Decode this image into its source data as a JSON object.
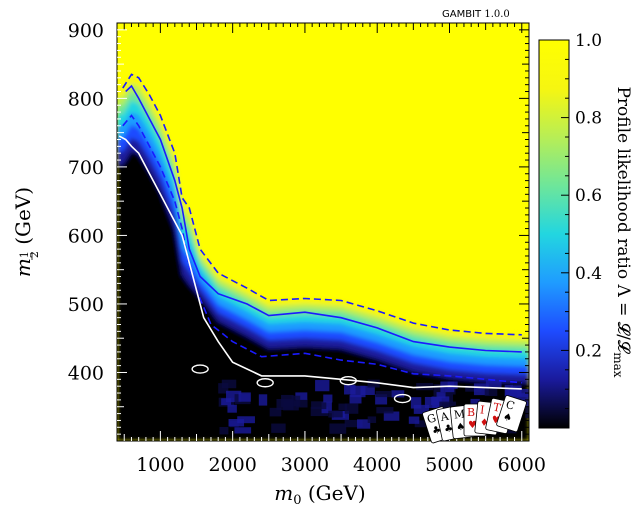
{
  "chart_data": {
    "type": "heatmap",
    "x_axis": {
      "label_main": "m",
      "label_sub": "0",
      "label_unit": " (GeV)",
      "range": [
        400,
        6100
      ],
      "ticks": [
        1000,
        2000,
        3000,
        4000,
        5000,
        6000
      ],
      "tick_labels": [
        "1000",
        "2000",
        "3000",
        "4000",
        "5000",
        "6000"
      ]
    },
    "y_axis": {
      "label_main": "m",
      "label_sub_num": "1",
      "label_sub_den": "2",
      "label_unit": " (GeV)",
      "range": [
        300,
        910
      ],
      "ticks": [
        400,
        500,
        600,
        700,
        800,
        900
      ],
      "tick_labels": [
        "400",
        "500",
        "600",
        "700",
        "800",
        "900"
      ]
    },
    "colorbar": {
      "label": "Profile likelihood ratio Λ = 𝓛/𝓛",
      "label_sub": "max",
      "range": [
        0,
        1
      ],
      "ticks": [
        0.2,
        0.4,
        0.6,
        0.8,
        1.0
      ],
      "tick_labels": [
        "0.2",
        "0.4",
        "0.6",
        "0.8",
        "1.0"
      ],
      "colors": [
        "#000000",
        "#1a1a9c",
        "#1e4cff",
        "#1f9cff",
        "#22d6e0",
        "#6ee69a",
        "#b8ee55",
        "#f6f611",
        "#ffff00"
      ]
    },
    "boundary_68": [
      [
        520,
        810
      ],
      [
        600,
        818
      ],
      [
        700,
        800
      ],
      [
        850,
        770
      ],
      [
        1000,
        740
      ],
      [
        1200,
        680
      ],
      [
        1300,
        640
      ],
      [
        1400,
        580
      ],
      [
        1550,
        540
      ],
      [
        1800,
        515
      ],
      [
        2200,
        500
      ],
      [
        2500,
        483
      ],
      [
        3000,
        488
      ],
      [
        3500,
        480
      ],
      [
        4000,
        465
      ],
      [
        4500,
        445
      ],
      [
        5000,
        437
      ],
      [
        5500,
        432
      ],
      [
        6000,
        430
      ]
    ],
    "boundary_68_upper": [
      [
        480,
        815
      ],
      [
        600,
        835
      ],
      [
        700,
        830
      ],
      [
        850,
        805
      ],
      [
        1000,
        775
      ],
      [
        1200,
        720
      ],
      [
        1300,
        655
      ],
      [
        1400,
        640
      ],
      [
        1550,
        580
      ],
      [
        1800,
        545
      ],
      [
        2200,
        523
      ],
      [
        2500,
        505
      ],
      [
        3000,
        508
      ],
      [
        3500,
        505
      ],
      [
        4000,
        490
      ],
      [
        4500,
        472
      ],
      [
        5000,
        462
      ],
      [
        5500,
        457
      ],
      [
        6000,
        455
      ]
    ],
    "boundary_68_lower": [
      [
        480,
        760
      ],
      [
        600,
        775
      ],
      [
        700,
        760
      ],
      [
        850,
        730
      ],
      [
        1000,
        700
      ],
      [
        1200,
        650
      ],
      [
        1300,
        610
      ],
      [
        1400,
        555
      ],
      [
        1500,
        520
      ],
      [
        1700,
        470
      ],
      [
        2000,
        445
      ],
      [
        2400,
        423
      ],
      [
        3000,
        428
      ],
      [
        3500,
        418
      ],
      [
        4000,
        412
      ],
      [
        4500,
        398
      ],
      [
        5000,
        395
      ],
      [
        5500,
        390
      ],
      [
        6000,
        385
      ]
    ],
    "boundary_95": [
      [
        430,
        745
      ],
      [
        520,
        740
      ],
      [
        600,
        730
      ],
      [
        700,
        720
      ],
      [
        850,
        690
      ],
      [
        1000,
        660
      ],
      [
        1150,
        630
      ],
      [
        1300,
        600
      ],
      [
        1400,
        560
      ],
      [
        1500,
        520
      ],
      [
        1600,
        480
      ],
      [
        1800,
        445
      ],
      [
        2000,
        415
      ],
      [
        2400,
        395
      ],
      [
        3000,
        395
      ],
      [
        3500,
        390
      ],
      [
        4000,
        385
      ],
      [
        4500,
        378
      ],
      [
        5000,
        380
      ],
      [
        5500,
        378
      ],
      [
        6000,
        376
      ]
    ],
    "tag_text": "GAMBIT",
    "tag_version": "1.0.0",
    "logo_letters": [
      "G",
      "A",
      "M",
      "B",
      "I",
      "T",
      "C"
    ]
  }
}
